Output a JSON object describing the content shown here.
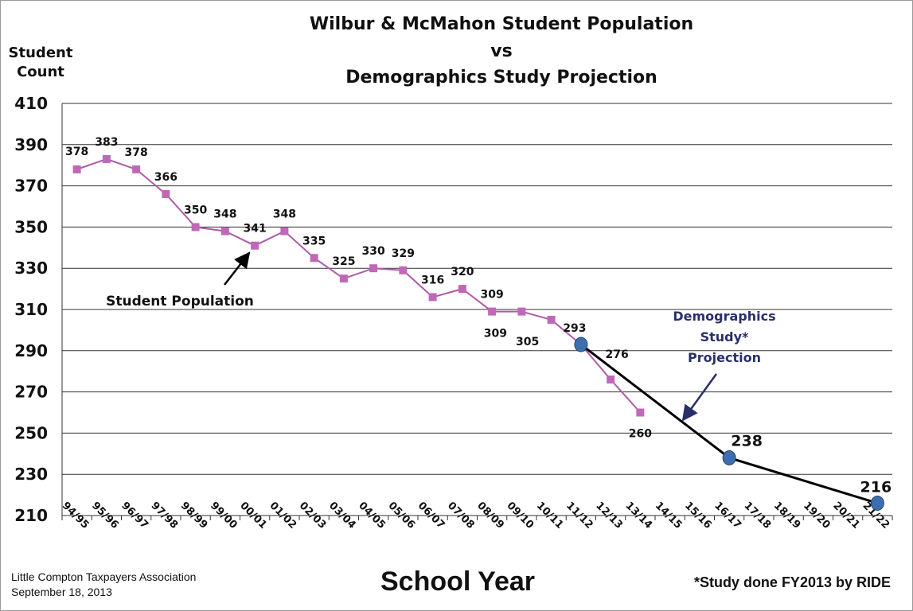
{
  "title": {
    "line1": "Wilbur & McMahon Student Population",
    "line2": "vs",
    "line3": "Demographics Study Projection"
  },
  "y_axis_title": {
    "line1": "Student",
    "line2": "Count"
  },
  "x_axis_title": "School Year",
  "source": {
    "line1": "Little Compton Taxpayers Association",
    "line2": "September 18, 2013"
  },
  "footnote": "*Study done FY2013 by RIDE",
  "annotations": {
    "student_population": "Student Population",
    "projection_line1": "Demographics",
    "projection_line2": "Study*",
    "projection_line3": "Projection"
  },
  "colors": {
    "student_series": "#b05aa8",
    "student_marker": "#c068b8",
    "projection_line": "#000000",
    "projection_marker": "#3d6fb0",
    "projection_annotation": "#2a2f6b",
    "grid": "#333333"
  },
  "chart_data": {
    "type": "line",
    "categories": [
      "94/95",
      "95/96",
      "96/97",
      "97/98",
      "98/99",
      "99/00",
      "00/01",
      "01/02",
      "02/03",
      "03/04",
      "04/05",
      "05/06",
      "06/07",
      "07/08",
      "08/09",
      "09/10",
      "10/11",
      "11/12",
      "12/13",
      "13/14",
      "14/15",
      "15/16",
      "16/17",
      "17/18",
      "18/19",
      "19/20",
      "20/21",
      "21/22"
    ],
    "ylim": [
      210,
      410
    ],
    "yticks": [
      410,
      390,
      370,
      350,
      330,
      310,
      290,
      270,
      250,
      230,
      210
    ],
    "grid": true,
    "series": [
      {
        "values": [
          378,
          383,
          378,
          366,
          350,
          348,
          341,
          348,
          335,
          325,
          330,
          329,
          316,
          320,
          309,
          309,
          305,
          293,
          276,
          260,
          null,
          null,
          null,
          null,
          null,
          null,
          null,
          null
        ]
      },
      {
        "points": [
          {
            "x": "11/12",
            "y": 293
          },
          {
            "x": "16/17",
            "y": 238
          },
          {
            "x": "21/22",
            "y": 216
          }
        ]
      }
    ]
  }
}
